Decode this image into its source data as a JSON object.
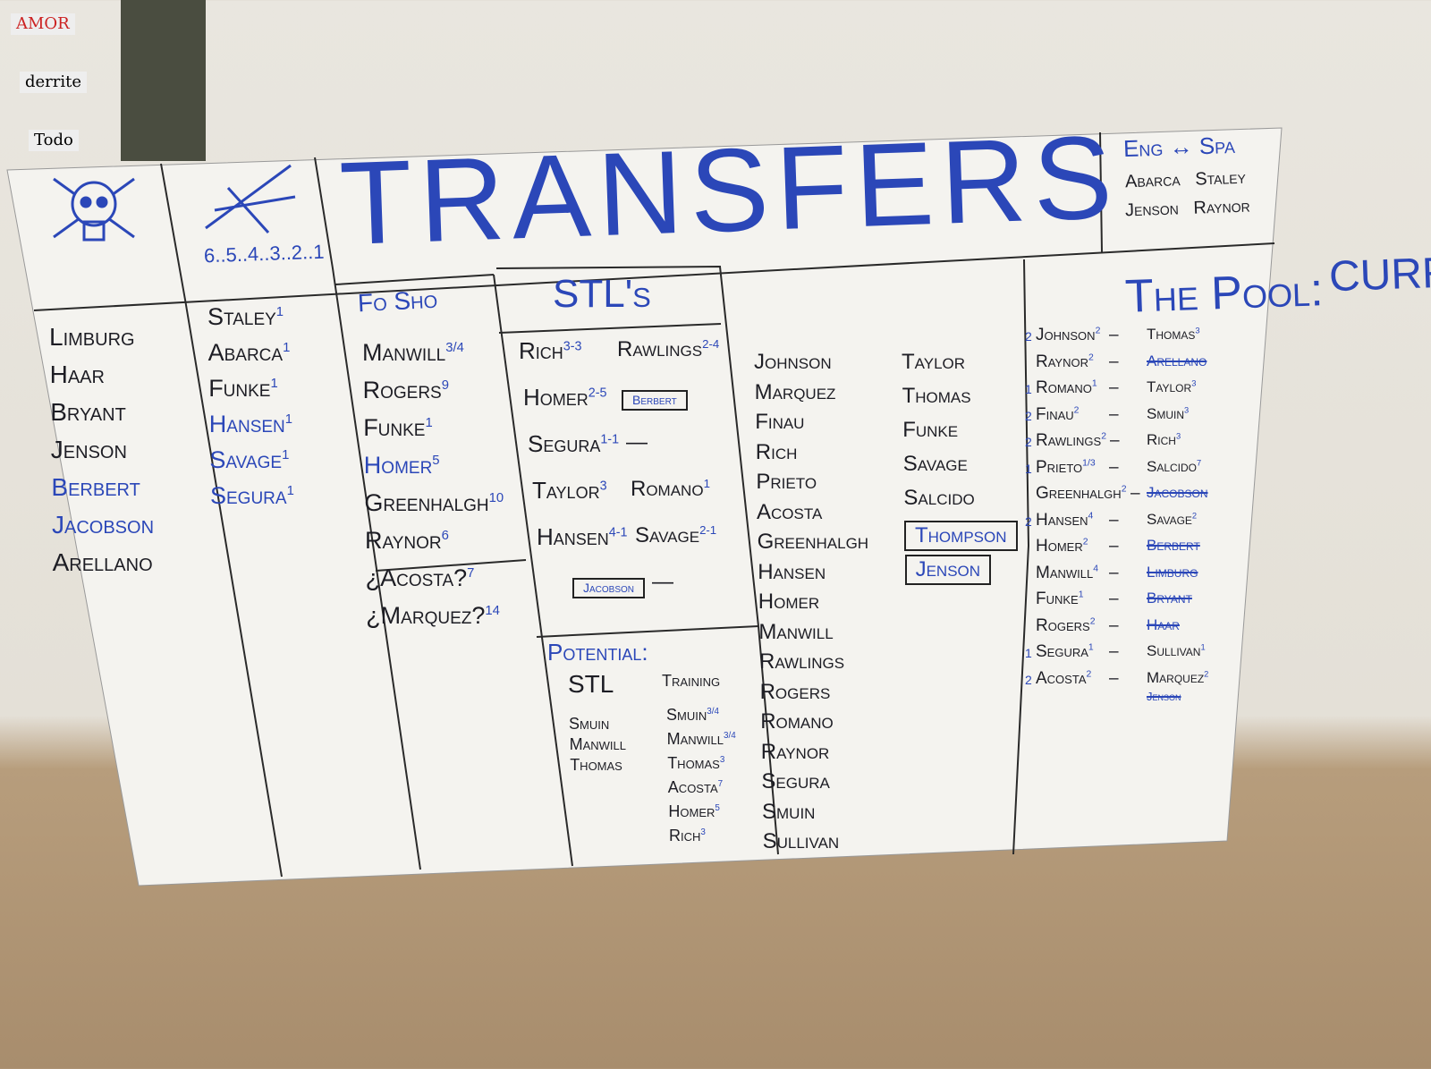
{
  "wall_notes": [
    "AMOR",
    "derrite",
    "Todo"
  ],
  "countdown": "6..5..4..3..2..1",
  "title": "TRANSFERS",
  "lang_box": {
    "header": "Eng ↔ Spa",
    "rows": [
      "Abarca   Staley",
      "Jenson   Raynor"
    ]
  },
  "col1": [
    {
      "n": "Limburg"
    },
    {
      "n": "Haar"
    },
    {
      "n": "Bryant"
    },
    {
      "n": "Jenson"
    },
    {
      "n": "Berbert",
      "blue": true
    },
    {
      "n": "Jacobson",
      "blue": true
    },
    {
      "n": "Arellano"
    }
  ],
  "col2": [
    {
      "n": "Staley",
      "s": "1"
    },
    {
      "n": "Abarca",
      "s": "1"
    },
    {
      "n": "Funke",
      "s": "1"
    },
    {
      "n": "Hansen",
      "s": "1",
      "blue": true
    },
    {
      "n": "Savage",
      "s": "1",
      "blue": true
    },
    {
      "n": "Segura",
      "s": "1",
      "blue": true
    }
  ],
  "fo_sho": {
    "header": "Fo Sho",
    "items": [
      {
        "n": "Manwill",
        "s": "3/4"
      },
      {
        "n": "Rogers",
        "s": "9"
      },
      {
        "n": "Funke",
        "s": "1"
      },
      {
        "n": "Homer",
        "s": "5",
        "blue": true
      },
      {
        "n": "Greenhalgh",
        "s": "10"
      },
      {
        "n": "Raynor",
        "s": "6"
      },
      {
        "n": "¿Acosta?",
        "s": "7"
      },
      {
        "n": "¿Marquez?",
        "s": "14"
      }
    ]
  },
  "stls": {
    "header": "STL's",
    "rows": [
      {
        "a": "Rich",
        "as": "3-3",
        "b": "Rawlings",
        "bs": "2-4"
      },
      {
        "a": "Homer",
        "as": "2-5",
        "b": "Berbert",
        "boxb": true
      },
      {
        "a": "Segura",
        "as": "1-1",
        "b": "—"
      },
      {
        "a": "Taylor",
        "as": "3",
        "b": "Romano",
        "bs": "1"
      },
      {
        "a": "Hansen",
        "as": "4-1",
        "b": "Savage",
        "bs": "2-1"
      },
      {
        "a": "Jacobson",
        "boxa": true,
        "b": "—"
      }
    ]
  },
  "potential": {
    "header": "Potential:",
    "stl_header": "STL",
    "training_header": "Training",
    "stl": [
      {
        "n": "Smuin"
      },
      {
        "n": "Manwill"
      },
      {
        "n": "Thomas"
      }
    ],
    "training": [
      {
        "n": "Smuin",
        "s": "3/4"
      },
      {
        "n": "Manwill",
        "s": "3/4"
      },
      {
        "n": "Thomas",
        "s": "3"
      },
      {
        "n": "Acosta",
        "s": "7"
      },
      {
        "n": "Homer",
        "s": "5"
      },
      {
        "n": "Rich",
        "s": "3"
      }
    ]
  },
  "pool": {
    "header": "The Pool:",
    "left": [
      {
        "n": "Johnson"
      },
      {
        "n": "Marquez"
      },
      {
        "n": "Finau"
      },
      {
        "n": "Rich"
      },
      {
        "n": "Prieto"
      },
      {
        "n": "Acosta"
      },
      {
        "n": "Greenhalgh"
      },
      {
        "n": "Hansen"
      },
      {
        "n": "Homer"
      },
      {
        "n": "Manwill"
      },
      {
        "n": "Rawlings"
      },
      {
        "n": "Rogers"
      },
      {
        "n": "Romano"
      },
      {
        "n": "Raynor"
      },
      {
        "n": "Segura"
      },
      {
        "n": "Smuin"
      },
      {
        "n": "Sullivan"
      }
    ],
    "right": [
      {
        "n": "Taylor"
      },
      {
        "n": "Thomas"
      },
      {
        "n": "Funke"
      },
      {
        "n": "Savage"
      },
      {
        "n": "Salcido"
      },
      {
        "n": "Thompson",
        "blue": true,
        "box": true
      },
      {
        "n": "Jenson",
        "blue": true,
        "box": true
      }
    ]
  },
  "current": {
    "header": "CURRENT:",
    "rows": [
      {
        "p": "2",
        "a": "Johnson",
        "as": "2",
        "b": "Thomas",
        "bs": "3"
      },
      {
        "p": "",
        "a": "Raynor",
        "as": "2",
        "b": "Arellano",
        "struck": true
      },
      {
        "p": "1",
        "a": "Romano",
        "as": "1",
        "b": "Taylor",
        "bs": "3"
      },
      {
        "p": "2",
        "a": "Finau",
        "as": "2",
        "b": "Smuin",
        "bs": "3"
      },
      {
        "p": "2",
        "a": "Rawlings",
        "as": "2",
        "b": "Rich",
        "bs": "3"
      },
      {
        "p": "1",
        "a": "Prieto",
        "as": "1/3",
        "b": "Salcido",
        "bs": "7"
      },
      {
        "p": "",
        "a": "Greenhalgh",
        "as": "2",
        "b": "Jacobson",
        "struck": true
      },
      {
        "p": "2",
        "a": "Hansen",
        "as": "4",
        "b": "Savage",
        "bs": "2"
      },
      {
        "p": "",
        "a": "Homer",
        "as": "2",
        "b": "Berbert",
        "struck": true
      },
      {
        "p": "",
        "a": "Manwill",
        "as": "4",
        "b": "Limburg",
        "struck": true
      },
      {
        "p": "",
        "a": "Funke",
        "as": "1",
        "b": "Bryant",
        "struck": true
      },
      {
        "p": "",
        "a": "Rogers",
        "as": "2",
        "b": "Haar",
        "struck": true
      },
      {
        "p": "1",
        "a": "Segura",
        "as": "1",
        "b": "Sullivan",
        "bs": "1"
      },
      {
        "p": "2",
        "a": "Acosta",
        "as": "2",
        "b": "Marquez",
        "bs": "2",
        "b2": "Jenson"
      }
    ]
  },
  "colors": {
    "ink_blue": "#2b47b8",
    "ink_black": "#1d1d24",
    "board": "#f4f3ef"
  }
}
